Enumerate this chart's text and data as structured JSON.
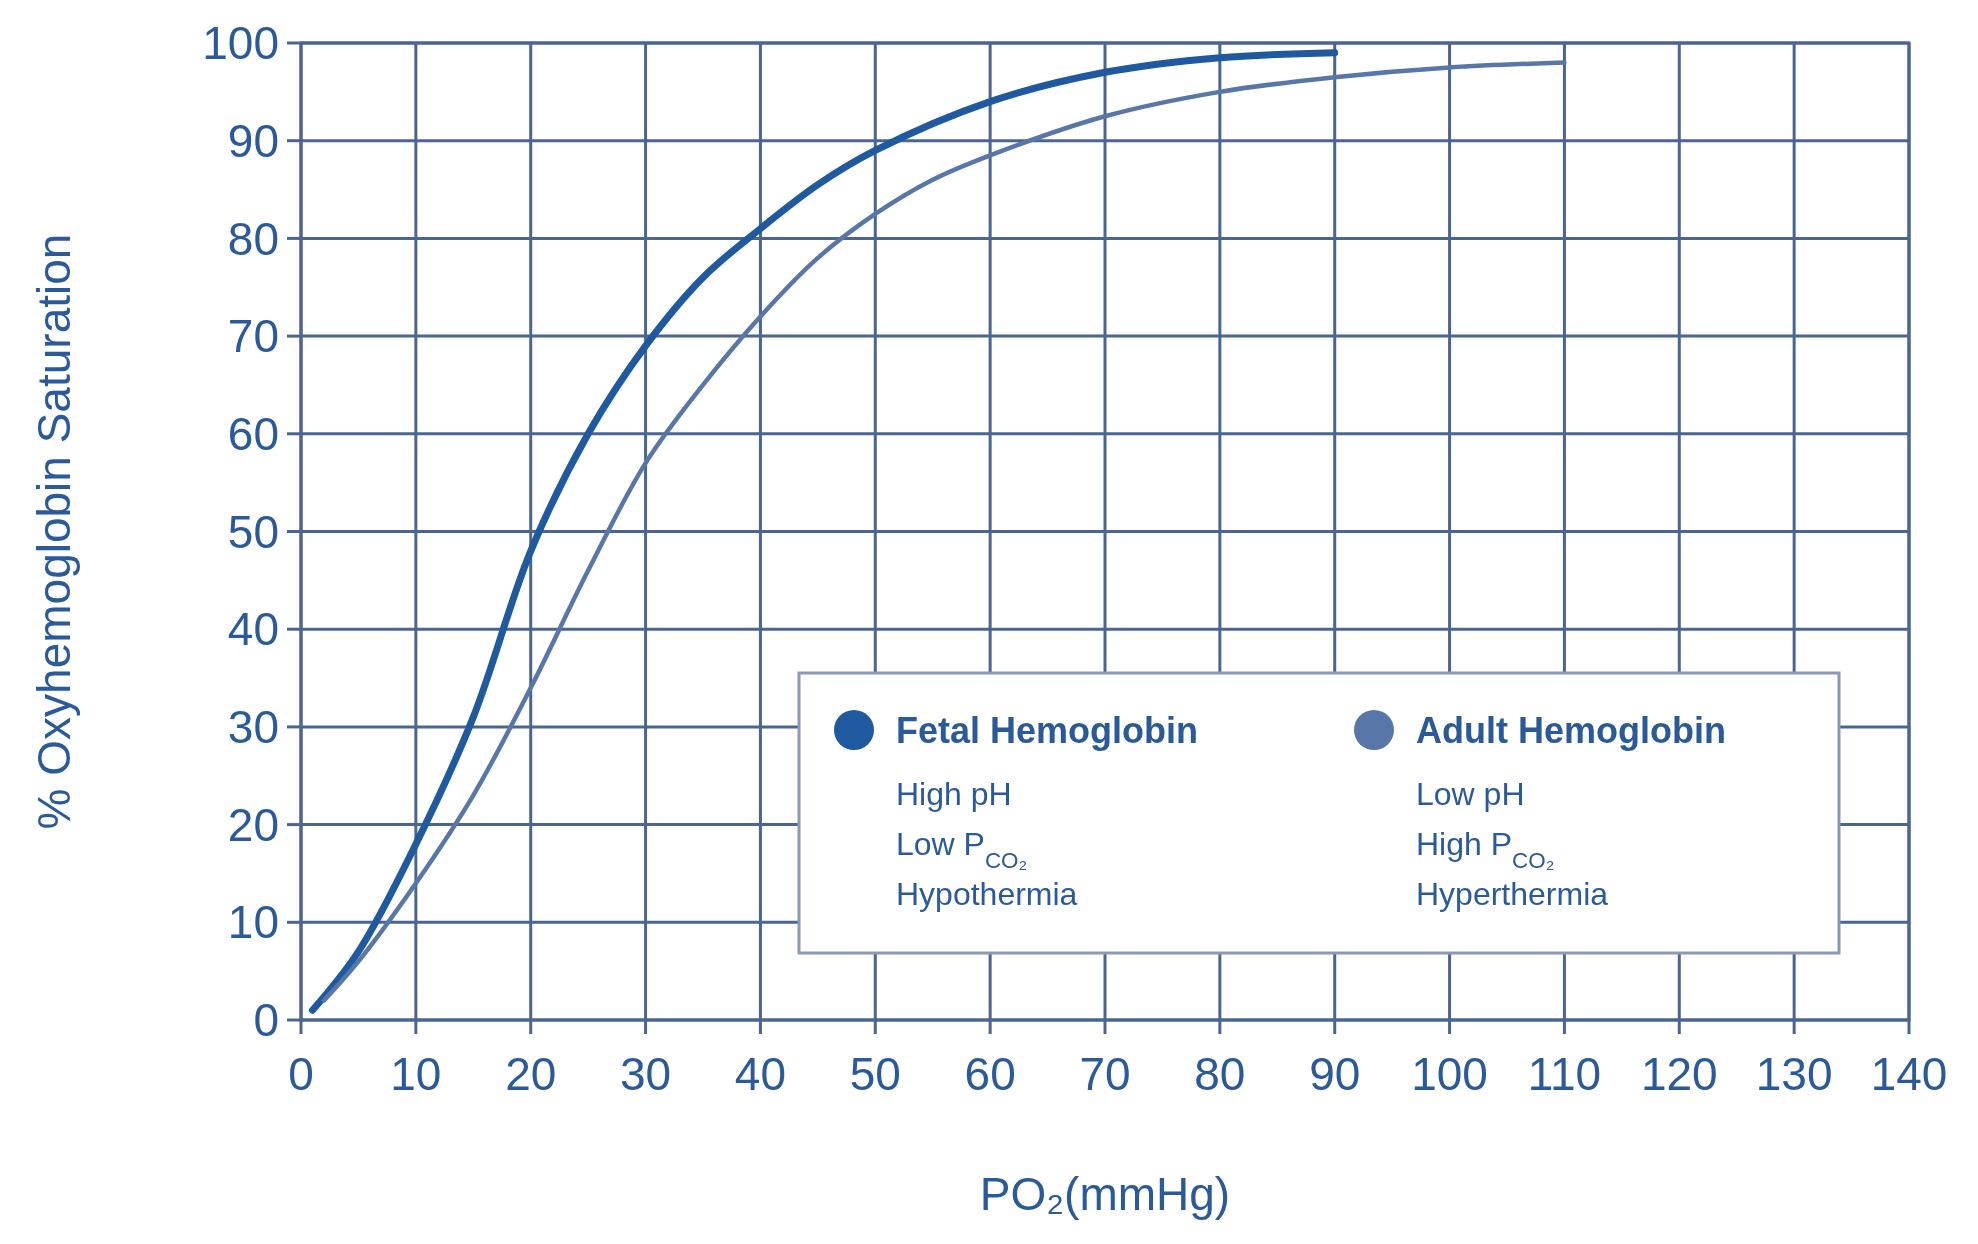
{
  "chart_data": {
    "type": "line",
    "xlabel": "PO₂(mmHg)",
    "ylabel": "% Oxyhemoglobin Saturation",
    "xlim": [
      0,
      140
    ],
    "ylim": [
      0,
      100
    ],
    "xticks": [
      0,
      10,
      20,
      30,
      40,
      50,
      60,
      70,
      80,
      90,
      100,
      110,
      120,
      130,
      140
    ],
    "yticks": [
      0,
      10,
      20,
      30,
      40,
      50,
      60,
      70,
      80,
      90,
      100
    ],
    "grid": true,
    "legend": "bottom right",
    "marker": "none",
    "line_style": "solid",
    "series": [
      {
        "name": "Fetal Hemoglobin",
        "color": "#1f5aa0",
        "x": [
          1,
          5,
          10,
          15,
          20,
          25,
          30,
          35,
          40,
          45,
          50,
          60,
          70,
          80,
          90
        ],
        "values": [
          1,
          7,
          18,
          31,
          48,
          60,
          69,
          76,
          81,
          85.5,
          89,
          94,
          97,
          98.5,
          99
        ]
      },
      {
        "name": "Adult Hemoglobin",
        "color": "#5877a8",
        "x": [
          2,
          5,
          10,
          15,
          20,
          25,
          30,
          35,
          40,
          45,
          50,
          55,
          60,
          70,
          80,
          90,
          100,
          110
        ],
        "values": [
          2,
          6,
          14,
          23,
          34,
          46,
          57,
          65,
          72,
          78,
          82.5,
          86,
          88.5,
          92.5,
          95,
          96.5,
          97.5,
          98
        ]
      }
    ],
    "annotations": [
      "High pH",
      "Low P$_{CO₂}$",
      "Hypothermia",
      "Low pH",
      "High P$_{CO₂}$",
      "Hyperthermia"
    ]
  }
}
